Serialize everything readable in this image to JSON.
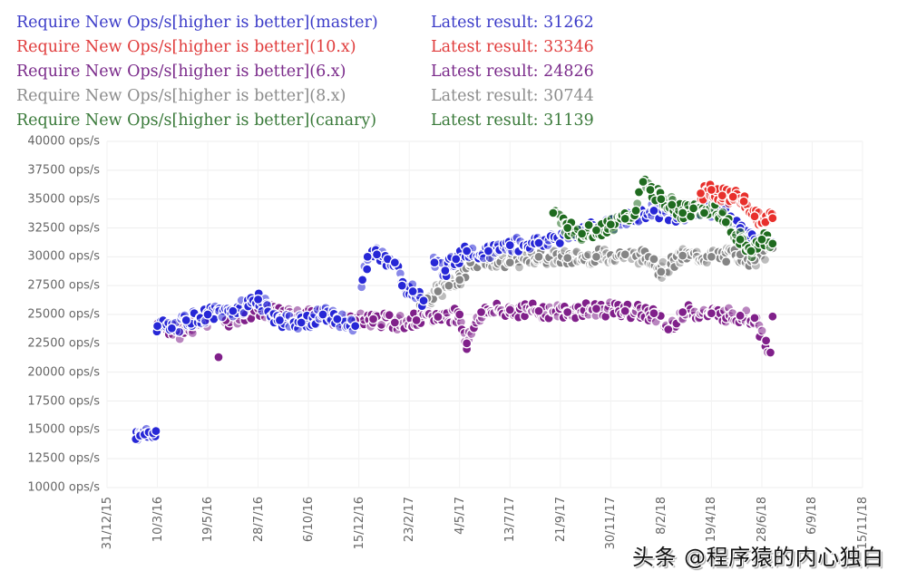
{
  "legend": [
    {
      "name": "Require New Ops/s[higher is better](master)",
      "latest": "Latest result: 31262",
      "color": "#3b3bc8"
    },
    {
      "name": "Require New Ops/s[higher is better](10.x)",
      "latest": "Latest result: 33346",
      "color": "#e03c3c"
    },
    {
      "name": "Require New Ops/s[higher is better](6.x)",
      "latest": "Latest result: 24826",
      "color": "#7a2a8a"
    },
    {
      "name": "Require New Ops/s[higher is better](8.x)",
      "latest": "Latest result: 30744",
      "color": "#8c8c8c"
    },
    {
      "name": "Require New Ops/s[higher is better](canary)",
      "latest": "Latest result: 31139",
      "color": "#3a7a3a"
    }
  ],
  "watermark": "头条 @程序猿的内心独白",
  "chart_data": {
    "type": "scatter",
    "title": "",
    "xlabel": "",
    "ylabel": "",
    "y_tick_labels": [
      "40000 ops/s",
      "37500 ops/s",
      "35000 ops/s",
      "32500 ops/s",
      "30000 ops/s",
      "27500 ops/s",
      "25000 ops/s",
      "22500 ops/s",
      "20000 ops/s",
      "17500 ops/s",
      "15000 ops/s",
      "12500 ops/s",
      "10000 ops/s"
    ],
    "y_ticks": [
      40000,
      37500,
      35000,
      32500,
      30000,
      27500,
      25000,
      22500,
      20000,
      17500,
      15000,
      12500,
      10000
    ],
    "ylim": [
      10000,
      40000
    ],
    "x_tick_labels": [
      "31/12/15",
      "10/3/16",
      "19/5/16",
      "28/7/16",
      "6/10/16",
      "15/12/16",
      "23/2/17",
      "4/5/17",
      "13/7/17",
      "21/9/17",
      "30/11/17",
      "8/2/18",
      "19/4/18",
      "28/6/18",
      "6/9/18",
      "15/11/18"
    ],
    "x_tick_spacing_days": 70,
    "grid": true,
    "legend_position": "top-left",
    "x_unit": "days since 31/12/15",
    "series": [
      {
        "name": "master",
        "color": "#2727d6",
        "points": [
          [
            40,
            14200
          ],
          [
            46,
            14500
          ],
          [
            52,
            14600
          ],
          [
            58,
            14800
          ],
          [
            64,
            14700
          ],
          [
            68,
            14900
          ],
          [
            70,
            24000
          ],
          [
            90,
            23800
          ],
          [
            110,
            24500
          ],
          [
            140,
            25000
          ],
          [
            175,
            25300
          ],
          [
            210,
            26300
          ],
          [
            240,
            24500
          ],
          [
            270,
            24300
          ],
          [
            300,
            25000
          ],
          [
            320,
            24600
          ],
          [
            345,
            24000
          ],
          [
            355,
            28000
          ],
          [
            362,
            30000
          ],
          [
            375,
            30200
          ],
          [
            390,
            29800
          ],
          [
            400,
            29500
          ],
          [
            410,
            27500
          ],
          [
            425,
            27000
          ],
          [
            440,
            26200
          ],
          [
            455,
            29500
          ],
          [
            470,
            28800
          ],
          [
            485,
            29800
          ],
          [
            500,
            30500
          ],
          [
            530,
            30500
          ],
          [
            560,
            31000
          ],
          [
            600,
            31200
          ],
          [
            640,
            32000
          ],
          [
            680,
            32500
          ],
          [
            720,
            33200
          ],
          [
            760,
            34000
          ],
          [
            800,
            33500
          ],
          [
            820,
            34200
          ],
          [
            850,
            34000
          ],
          [
            880,
            32500
          ],
          [
            900,
            31500
          ],
          [
            925,
            31262
          ]
        ]
      },
      {
        "name": "10.x",
        "color": "#e8302c",
        "points": [
          [
            825,
            35500
          ],
          [
            840,
            35800
          ],
          [
            855,
            35300
          ],
          [
            870,
            35200
          ],
          [
            885,
            34800
          ],
          [
            900,
            33500
          ],
          [
            915,
            33000
          ],
          [
            925,
            33346
          ]
        ]
      },
      {
        "name": "6.x",
        "color": "#80208a",
        "points": [
          [
            70,
            24200
          ],
          [
            85,
            23800
          ],
          [
            100,
            23500
          ],
          [
            120,
            24000
          ],
          [
            140,
            24500
          ],
          [
            155,
            21300
          ],
          [
            165,
            24500
          ],
          [
            190,
            25000
          ],
          [
            210,
            25500
          ],
          [
            240,
            25000
          ],
          [
            270,
            24800
          ],
          [
            300,
            24900
          ],
          [
            330,
            24500
          ],
          [
            345,
            24500
          ],
          [
            370,
            24600
          ],
          [
            400,
            24300
          ],
          [
            430,
            24500
          ],
          [
            460,
            24800
          ],
          [
            490,
            25000
          ],
          [
            500,
            22500
          ],
          [
            520,
            25200
          ],
          [
            560,
            25400
          ],
          [
            600,
            25300
          ],
          [
            640,
            25200
          ],
          [
            680,
            25500
          ],
          [
            720,
            25300
          ],
          [
            760,
            25100
          ],
          [
            780,
            23700
          ],
          [
            800,
            25200
          ],
          [
            840,
            25100
          ],
          [
            880,
            24900
          ],
          [
            900,
            24700
          ],
          [
            922,
            21700
          ],
          [
            925,
            24826
          ]
        ]
      },
      {
        "name": "8.x",
        "color": "#858585",
        "points": [
          [
            435,
            25800
          ],
          [
            445,
            26400
          ],
          [
            460,
            27000
          ],
          [
            475,
            27500
          ],
          [
            490,
            28000
          ],
          [
            505,
            29500
          ],
          [
            530,
            29800
          ],
          [
            560,
            29500
          ],
          [
            600,
            30000
          ],
          [
            640,
            29900
          ],
          [
            680,
            30000
          ],
          [
            720,
            30200
          ],
          [
            760,
            29800
          ],
          [
            770,
            28700
          ],
          [
            800,
            30100
          ],
          [
            840,
            30000
          ],
          [
            880,
            30200
          ],
          [
            900,
            29700
          ],
          [
            925,
            30744
          ]
        ]
      },
      {
        "name": "canary",
        "color": "#1f6b1f",
        "points": [
          [
            620,
            33800
          ],
          [
            640,
            32500
          ],
          [
            660,
            32000
          ],
          [
            680,
            32300
          ],
          [
            700,
            32800
          ],
          [
            720,
            33300
          ],
          [
            735,
            34000
          ],
          [
            745,
            36500
          ],
          [
            755,
            35800
          ],
          [
            770,
            35000
          ],
          [
            785,
            34500
          ],
          [
            800,
            33800
          ],
          [
            815,
            34200
          ],
          [
            830,
            33800
          ],
          [
            845,
            34500
          ],
          [
            860,
            33000
          ],
          [
            880,
            31500
          ],
          [
            895,
            30500
          ],
          [
            910,
            31500
          ],
          [
            925,
            31139
          ]
        ]
      }
    ]
  }
}
